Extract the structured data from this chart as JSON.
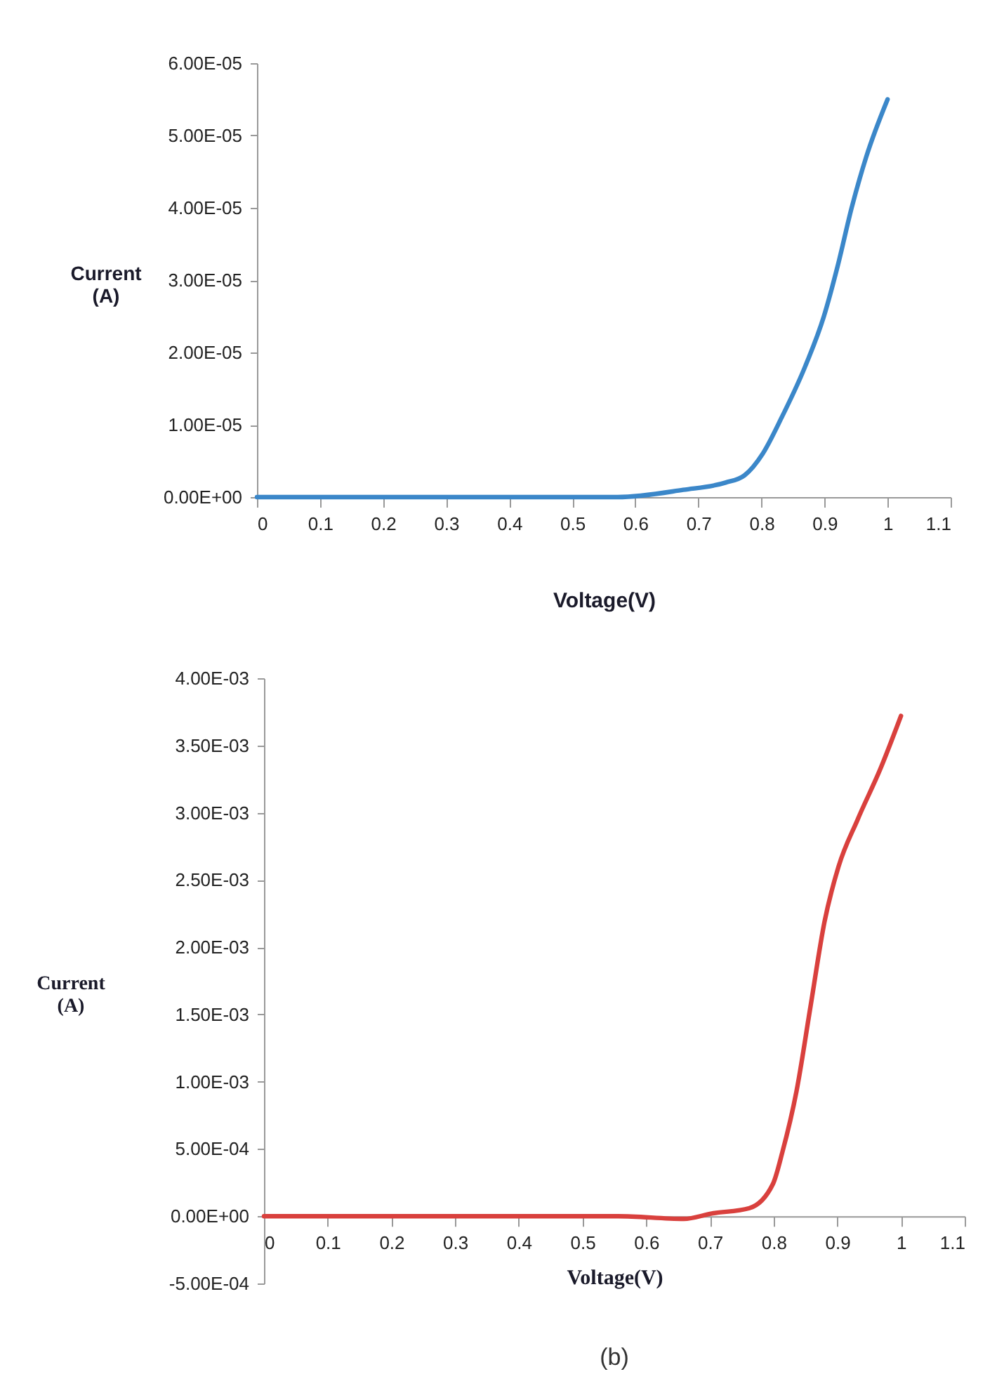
{
  "chart_data": [
    {
      "type": "line",
      "xlabel": "Voltage(V)",
      "ylabel": "Current (A)",
      "x": [
        0,
        0.1,
        0.2,
        0.3,
        0.4,
        0.5,
        0.572,
        0.676,
        0.743,
        0.773,
        0.802,
        0.832,
        0.869,
        0.899,
        0.921,
        0.943,
        0.966,
        1.0
      ],
      "series": [
        {
          "color": "#3b87c9",
          "values": [
            0,
            0,
            0,
            0,
            0,
            0,
            0,
            1e-06,
            2e-06,
            3e-06,
            6e-06,
            1.1e-05,
            1.8e-05,
            2.5e-05,
            3.2e-05,
            4e-05,
            4.7e-05,
            5.5e-05
          ]
        }
      ],
      "xlim": [
        0,
        1.1
      ],
      "ylim": [
        0,
        6e-05
      ],
      "xticks": [
        0,
        0.1,
        0.2,
        0.3,
        0.4,
        0.5,
        0.6,
        0.7,
        0.8,
        0.9,
        1,
        1.1
      ],
      "yticks": [
        {
          "value": 0,
          "label": "0.00E+00"
        },
        {
          "value": 1e-05,
          "label": "1.00E-05"
        },
        {
          "value": 2e-05,
          "label": "2.00E-05"
        },
        {
          "value": 3e-05,
          "label": "3.00E-05"
        },
        {
          "value": 4e-05,
          "label": "4.00E-05"
        },
        {
          "value": 5e-05,
          "label": "5.00E-05"
        },
        {
          "value": 6e-05,
          "label": "6.00E-05"
        }
      ],
      "grid": false
    },
    {
      "type": "line",
      "xlabel": "Voltage(V)",
      "ylabel": "Current (A)",
      "annotations": [
        "(b)"
      ],
      "x": [
        0,
        0.1,
        0.2,
        0.3,
        0.4,
        0.5,
        0.556,
        0.659,
        0.703,
        0.762,
        0.799,
        0.814,
        0.836,
        0.858,
        0.88,
        0.902,
        0.932,
        0.968,
        1.0
      ],
      "series": [
        {
          "color": "#d9403d",
          "values": [
            0,
            0,
            0,
            0,
            0,
            0,
            0,
            -2e-05,
            2e-05,
            6e-05,
            0.00024,
            0.00048,
            0.00093,
            0.00156,
            0.00219,
            0.0026,
            0.00295,
            0.00333,
            0.00372
          ]
        }
      ],
      "xlim": [
        0,
        1.1
      ],
      "ylim": [
        -0.0005,
        0.004
      ],
      "xticks": [
        0,
        0.1,
        0.2,
        0.3,
        0.4,
        0.5,
        0.6,
        0.7,
        0.8,
        0.9,
        1,
        1.1
      ],
      "yticks": [
        {
          "value": -0.0005,
          "label": "-5.00E-04"
        },
        {
          "value": 0,
          "label": "0.00E+00"
        },
        {
          "value": 0.0005,
          "label": "5.00E-04"
        },
        {
          "value": 0.001,
          "label": "1.00E-03"
        },
        {
          "value": 0.0015,
          "label": "1.50E-03"
        },
        {
          "value": 0.002,
          "label": "2.00E-03"
        },
        {
          "value": 0.0025,
          "label": "2.50E-03"
        },
        {
          "value": 0.003,
          "label": "3.00E-03"
        },
        {
          "value": 0.0035,
          "label": "3.50E-03"
        },
        {
          "value": 0.004,
          "label": "4.00E-03"
        }
      ],
      "grid": false
    }
  ]
}
